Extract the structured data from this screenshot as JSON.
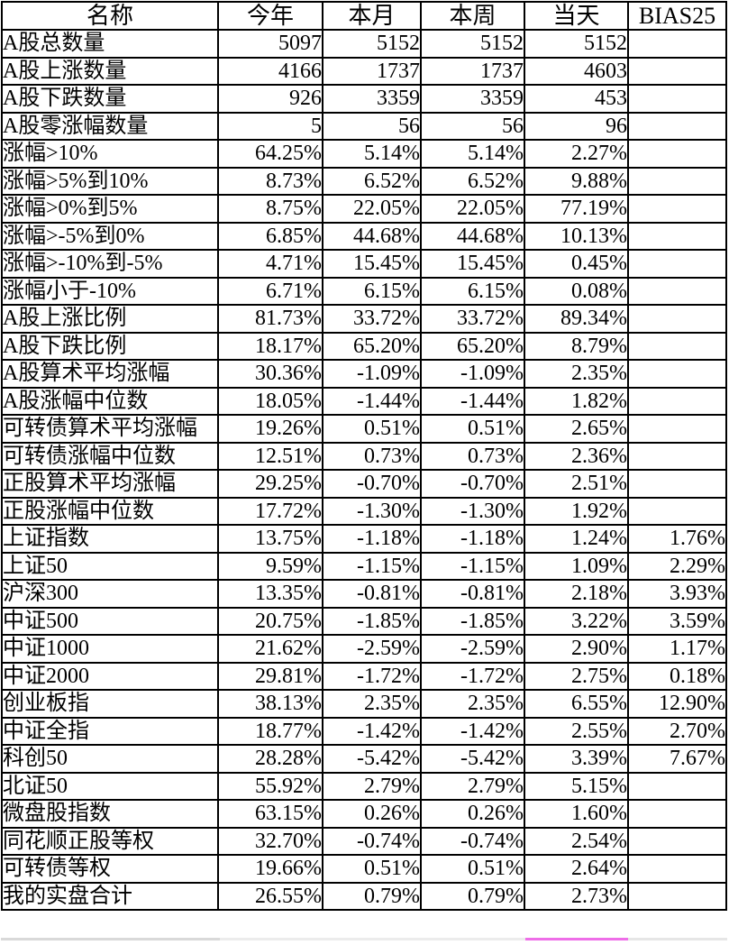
{
  "header": {
    "columns": [
      "名称",
      "今年",
      "本月",
      "本周",
      "当天",
      "BIAS25"
    ]
  },
  "rows": [
    {
      "name": "A股总数量",
      "values": [
        "5097",
        "5152",
        "5152",
        "5152",
        ""
      ]
    },
    {
      "name": "A股上涨数量",
      "values": [
        "4166",
        "1737",
        "1737",
        "4603",
        ""
      ]
    },
    {
      "name": "A股下跌数量",
      "values": [
        "926",
        "3359",
        "3359",
        "453",
        ""
      ]
    },
    {
      "name": "A股零涨幅数量",
      "values": [
        "5",
        "56",
        "56",
        "96",
        ""
      ]
    },
    {
      "name": "涨幅>10%",
      "values": [
        "64.25%",
        "5.14%",
        "5.14%",
        "2.27%",
        ""
      ]
    },
    {
      "name": "涨幅>5%到10%",
      "values": [
        "8.73%",
        "6.52%",
        "6.52%",
        "9.88%",
        ""
      ]
    },
    {
      "name": "涨幅>0%到5%",
      "values": [
        "8.75%",
        "22.05%",
        "22.05%",
        "77.19%",
        ""
      ]
    },
    {
      "name": "涨幅>-5%到0%",
      "values": [
        "6.85%",
        "44.68%",
        "44.68%",
        "10.13%",
        ""
      ]
    },
    {
      "name": "涨幅>-10%到-5%",
      "values": [
        "4.71%",
        "15.45%",
        "15.45%",
        "0.45%",
        ""
      ]
    },
    {
      "name": "涨幅小于-10%",
      "values": [
        "6.71%",
        "6.15%",
        "6.15%",
        "0.08%",
        ""
      ]
    },
    {
      "name": "A股上涨比例",
      "values": [
        "81.73%",
        "33.72%",
        "33.72%",
        "89.34%",
        ""
      ]
    },
    {
      "name": "A股下跌比例",
      "values": [
        "18.17%",
        "65.20%",
        "65.20%",
        "8.79%",
        ""
      ]
    },
    {
      "name": "A股算术平均涨幅",
      "values": [
        "30.36%",
        "-1.09%",
        "-1.09%",
        "2.35%",
        ""
      ]
    },
    {
      "name": "A股涨幅中位数",
      "values": [
        "18.05%",
        "-1.44%",
        "-1.44%",
        "1.82%",
        ""
      ]
    },
    {
      "name": "可转债算术平均涨幅",
      "values": [
        "19.26%",
        "0.51%",
        "0.51%",
        "2.65%",
        ""
      ]
    },
    {
      "name": "可转债涨幅中位数",
      "values": [
        "12.51%",
        "0.73%",
        "0.73%",
        "2.36%",
        ""
      ]
    },
    {
      "name": "正股算术平均涨幅",
      "values": [
        "29.25%",
        "-0.70%",
        "-0.70%",
        "2.51%",
        ""
      ]
    },
    {
      "name": "正股涨幅中位数",
      "values": [
        "17.72%",
        "-1.30%",
        "-1.30%",
        "1.92%",
        ""
      ]
    },
    {
      "name": "上证指数",
      "values": [
        "13.75%",
        "-1.18%",
        "-1.18%",
        "1.24%",
        "1.76%"
      ]
    },
    {
      "name": "上证50",
      "values": [
        "9.59%",
        "-1.15%",
        "-1.15%",
        "1.09%",
        "2.29%"
      ]
    },
    {
      "name": "沪深300",
      "values": [
        "13.35%",
        "-0.81%",
        "-0.81%",
        "2.18%",
        "3.93%"
      ]
    },
    {
      "name": "中证500",
      "values": [
        "20.75%",
        "-1.85%",
        "-1.85%",
        "3.22%",
        "3.59%"
      ]
    },
    {
      "name": "中证1000",
      "values": [
        "21.62%",
        "-2.59%",
        "-2.59%",
        "2.90%",
        "1.17%"
      ]
    },
    {
      "name": "中证2000",
      "values": [
        "29.81%",
        "-1.72%",
        "-1.72%",
        "2.75%",
        "0.18%"
      ]
    },
    {
      "name": "创业板指",
      "values": [
        "38.13%",
        "2.35%",
        "2.35%",
        "6.55%",
        "12.90%"
      ]
    },
    {
      "name": "中证全指",
      "values": [
        "18.77%",
        "-1.42%",
        "-1.42%",
        "2.55%",
        "2.70%"
      ]
    },
    {
      "name": "科创50",
      "values": [
        "28.28%",
        "-5.42%",
        "-5.42%",
        "3.39%",
        "7.67%"
      ]
    },
    {
      "name": "北证50",
      "values": [
        "55.92%",
        "2.79%",
        "2.79%",
        "5.15%",
        ""
      ]
    },
    {
      "name": "微盘股指数",
      "values": [
        "63.15%",
        "0.26%",
        "0.26%",
        "1.60%",
        ""
      ]
    },
    {
      "name": "同花顺正股等权",
      "values": [
        "32.70%",
        "-0.74%",
        "-0.74%",
        "2.54%",
        ""
      ]
    },
    {
      "name": "可转债等权",
      "values": [
        "19.66%",
        "0.51%",
        "0.51%",
        "2.64%",
        ""
      ]
    },
    {
      "name": "我的实盘合计",
      "values": [
        "26.55%",
        "0.79%",
        "0.79%",
        "2.73%",
        ""
      ]
    }
  ],
  "footer_strip": {
    "segments": [
      {
        "name": "left-gray",
        "color": "#d9d9d9"
      },
      {
        "name": "mid-light-gray",
        "color": "#ececec"
      },
      {
        "name": "pink-accent",
        "color": "#ee6ee8"
      },
      {
        "name": "right-light-gray",
        "color": "#e6e6e6"
      }
    ]
  },
  "colors": {
    "grid_border": "#000000",
    "background": "#ffffff",
    "accent_pink": "#ee6ee8"
  }
}
